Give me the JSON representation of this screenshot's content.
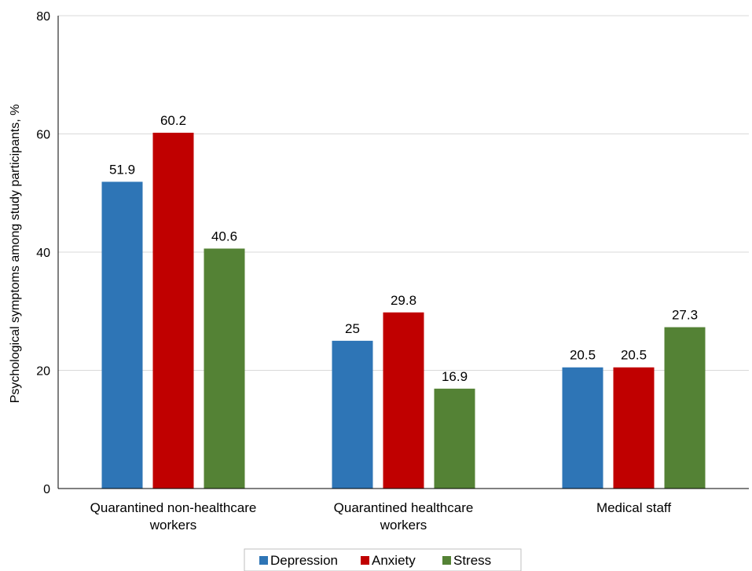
{
  "chart_data": {
    "type": "bar",
    "categories": [
      [
        "Quarantined non-healthcare",
        "workers"
      ],
      [
        "Quarantined healthcare",
        "workers"
      ],
      [
        "Medical staff"
      ]
    ],
    "series": [
      {
        "name": "Depression",
        "color": "#2E75B6",
        "values": [
          51.9,
          25,
          20.5
        ],
        "labels": [
          "51.9",
          "25",
          "20.5"
        ]
      },
      {
        "name": "Anxiety",
        "color": "#C00000",
        "values": [
          60.2,
          29.8,
          20.5
        ],
        "labels": [
          "60.2",
          "29.8",
          "20.5"
        ]
      },
      {
        "name": "Stress",
        "color": "#548235",
        "values": [
          40.6,
          16.9,
          27.3
        ],
        "labels": [
          "40.6",
          "16.9",
          "27.3"
        ]
      }
    ],
    "ylabel": "Psychological  symptoms among study participants, %",
    "xlabel": "",
    "title": "",
    "ylim": [
      0,
      80
    ],
    "yticks": [
      0,
      20,
      40,
      60,
      80
    ],
    "grid": true,
    "legend_position": "bottom"
  }
}
